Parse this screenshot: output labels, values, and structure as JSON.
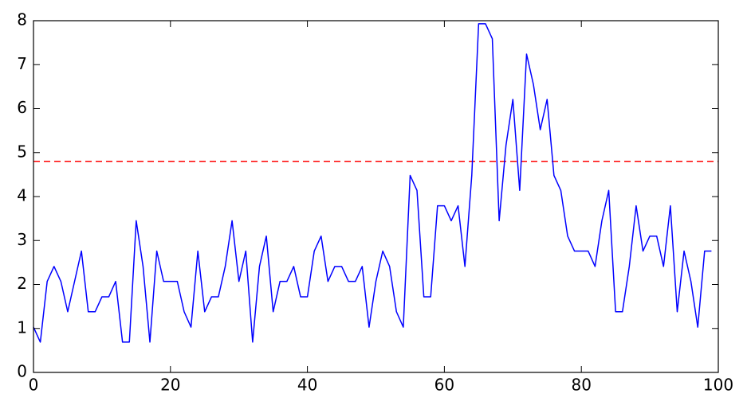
{
  "chart_data": {
    "type": "line",
    "x": [
      0,
      1,
      2,
      3,
      4,
      5,
      6,
      7,
      8,
      9,
      10,
      11,
      12,
      13,
      14,
      15,
      16,
      17,
      18,
      19,
      20,
      21,
      22,
      23,
      24,
      25,
      26,
      27,
      28,
      29,
      30,
      31,
      32,
      33,
      34,
      35,
      36,
      37,
      38,
      39,
      40,
      41,
      42,
      43,
      44,
      45,
      46,
      47,
      48,
      49,
      50,
      51,
      52,
      53,
      54,
      55,
      56,
      57,
      58,
      59,
      60,
      61,
      62,
      63,
      64,
      65,
      66,
      67,
      68,
      69,
      70,
      71,
      72,
      73,
      74,
      75,
      76,
      77,
      78,
      79,
      80,
      81,
      82,
      83,
      84,
      85,
      86,
      87,
      88,
      89,
      90,
      91,
      92,
      93,
      94,
      95,
      96,
      97,
      98,
      99
    ],
    "series": [
      {
        "color": "#0000ff",
        "values": [
          1.03,
          0.69,
          2.07,
          2.41,
          2.07,
          1.38,
          2.07,
          2.76,
          1.38,
          1.38,
          1.72,
          1.72,
          2.07,
          0.69,
          0.69,
          3.45,
          2.41,
          0.69,
          2.76,
          2.07,
          2.07,
          2.07,
          1.38,
          1.03,
          2.76,
          1.38,
          1.72,
          1.72,
          2.41,
          3.45,
          2.07,
          2.76,
          0.69,
          2.41,
          3.1,
          1.38,
          2.07,
          2.07,
          2.41,
          1.72,
          1.72,
          2.76,
          3.1,
          2.07,
          2.41,
          2.41,
          2.07,
          2.07,
          2.41,
          1.03,
          2.07,
          2.76,
          2.41,
          1.38,
          1.03,
          4.48,
          4.14,
          1.72,
          1.72,
          3.79,
          3.79,
          3.45,
          3.79,
          2.41,
          4.48,
          7.93,
          7.93,
          7.59,
          3.45,
          5.17,
          6.21,
          4.14,
          7.24,
          6.55,
          5.52,
          6.21,
          4.48,
          4.14,
          3.1,
          2.76,
          2.76,
          2.76,
          2.41,
          3.45,
          4.14,
          1.38,
          1.38,
          2.41,
          3.79,
          2.76,
          3.1,
          3.1,
          2.41,
          3.79,
          1.38,
          2.76,
          2.07,
          1.03,
          2.76,
          2.76
        ]
      }
    ],
    "reference_line": {
      "value": 4.8,
      "color": "#ff0000"
    },
    "xlim": [
      0,
      100
    ],
    "xticks": [
      0,
      20,
      40,
      60,
      80,
      100
    ],
    "ylim": [
      0,
      8
    ],
    "yticks": [
      0,
      1,
      2,
      3,
      4,
      5,
      6,
      7,
      8
    ]
  }
}
